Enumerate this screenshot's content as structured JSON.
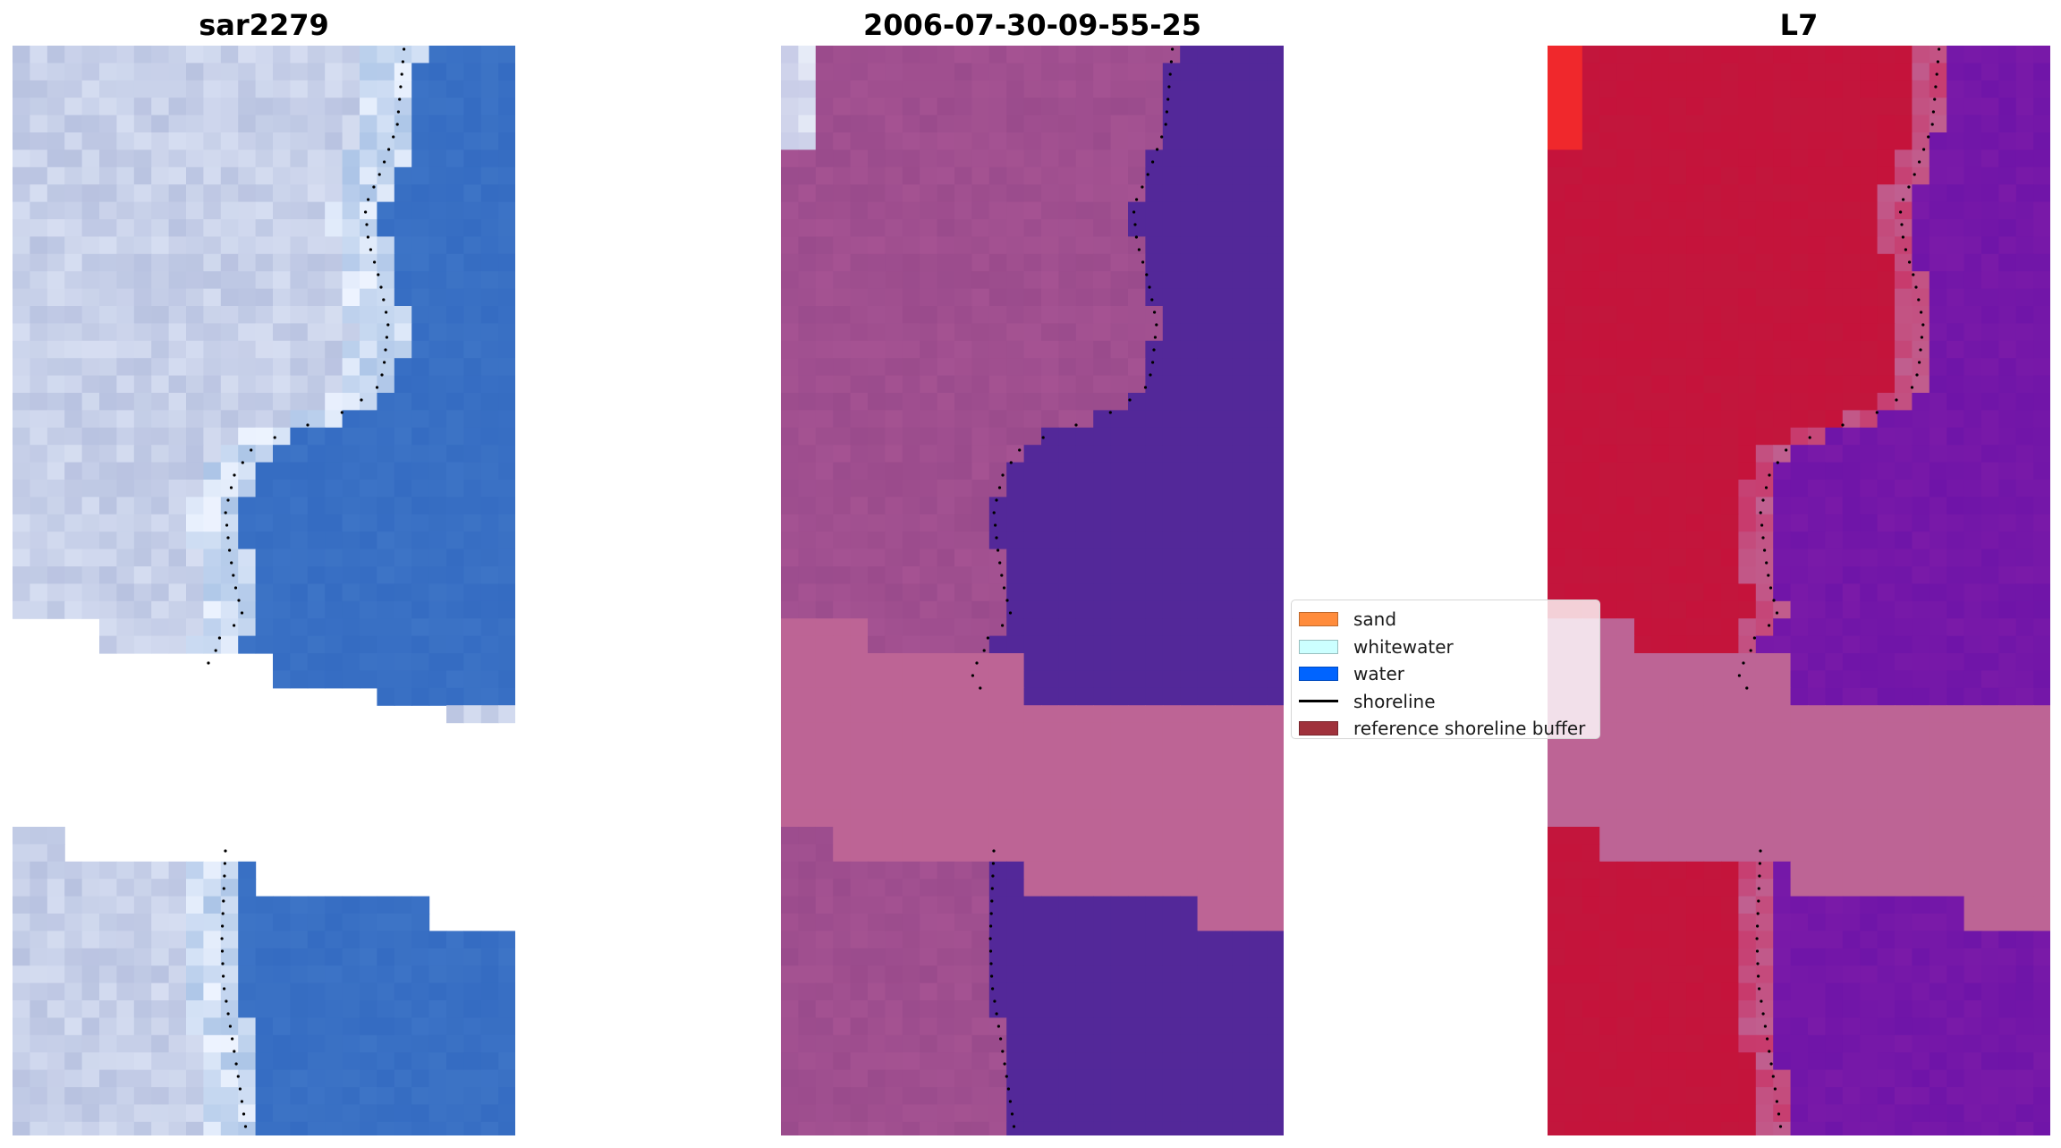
{
  "panels": [
    {
      "title": "sar2279",
      "kind": "rgb"
    },
    {
      "title": "2006-07-30-09-55-25",
      "kind": "classified"
    },
    {
      "title": "L7",
      "kind": "mndwi"
    }
  ],
  "legend": {
    "items": [
      {
        "label": "sand",
        "type": "patch",
        "color": "#ff8c3c"
      },
      {
        "label": "whitewater",
        "type": "patch",
        "color": "#ccffff"
      },
      {
        "label": "water",
        "type": "patch",
        "color": "#0064ff"
      },
      {
        "label": "shoreline",
        "type": "line",
        "color": "#000000"
      },
      {
        "label": "reference shoreline buffer",
        "type": "patch",
        "color": "#a0323c"
      }
    ]
  },
  "colors": {
    "sand_rgb": "#b8c2e0",
    "whitewater_rgb": "#eef4ff",
    "water_rgb": "#3d74c6",
    "land_classified": "#9a4b8c",
    "water_classified": "#532899",
    "buffer_overlay": "#bd6495",
    "land_index": "#c2163c",
    "water_index": "#7a1aa8"
  }
}
